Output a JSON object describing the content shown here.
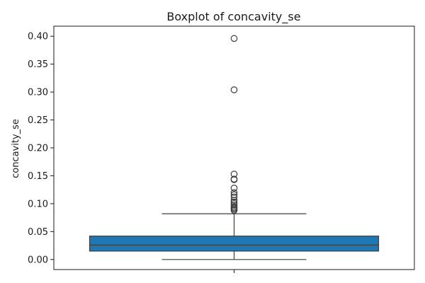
{
  "chart_data": {
    "type": "boxplot",
    "title": "Boxplot of concavity_se",
    "xlabel": "",
    "ylabel": "concavity_se",
    "ylim": [
      -0.018,
      0.418
    ],
    "yticks": [
      0.0,
      0.05,
      0.1,
      0.15,
      0.2,
      0.25,
      0.3,
      0.35,
      0.4
    ],
    "ytick_labels": [
      "0.00",
      "0.05",
      "0.10",
      "0.15",
      "0.20",
      "0.25",
      "0.30",
      "0.35",
      "0.40"
    ],
    "grid": false,
    "box": {
      "whisker_low": 0.0,
      "q1": 0.0151,
      "median": 0.0259,
      "q3": 0.042,
      "whisker_high": 0.082
    },
    "outliers": [
      0.396,
      0.304,
      0.153,
      0.144,
      0.143,
      0.128,
      0.12,
      0.116,
      0.112,
      0.106,
      0.103,
      0.1,
      0.097,
      0.094,
      0.092,
      0.09,
      0.088
    ],
    "colors": {
      "box_fill": "#1f77b4",
      "line": "#3d3d3d",
      "outlier_edge": "#3d3d3d",
      "axes": "#1a1a1a"
    }
  }
}
